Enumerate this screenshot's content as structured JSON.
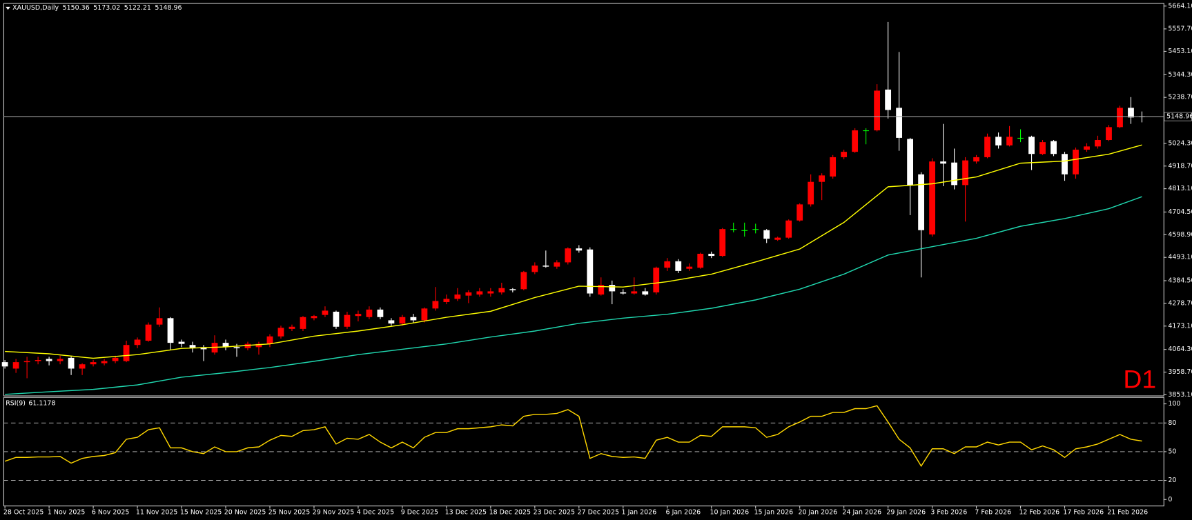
{
  "chart_data": [
    {
      "type": "candlestick",
      "title": "XAUUSD,Daily",
      "timeframe_label": "D1",
      "up_color": "#ff0000",
      "down_color": "#ffffff",
      "doji_color": "#00ff00",
      "price_line_color": "#a0a0a0",
      "candles": {
        "open": [
          4005,
          3975,
          4005,
          4010,
          4020,
          4010,
          4025,
          3975,
          3995,
          4000,
          4010,
          4010,
          4085,
          4105,
          4180,
          4210,
          4100,
          4085,
          4075,
          4050,
          4095,
          4075,
          4070,
          4075,
          4090,
          4125,
          4160,
          4160,
          4210,
          4225,
          4240,
          4170,
          4220,
          4215,
          4250,
          4200,
          4185,
          4215,
          4200,
          4255,
          4285,
          4300,
          4315,
          4320,
          4325,
          4330,
          4345,
          4345,
          4425,
          4455,
          4450,
          4470,
          4535,
          4530,
          4320,
          4365,
          4330,
          4325,
          4335,
          4330,
          4445,
          4475,
          4440,
          4445,
          4510,
          4500,
          4625,
          4620,
          4625,
          4620,
          4575,
          4585,
          4665,
          4740,
          4845,
          4870,
          4960,
          4985,
          5085,
          5085,
          5275,
          5190,
          5045,
          4880,
          4600,
          4940,
          4935,
          4830,
          4940,
          4960,
          5055,
          5015,
          5050,
          5055,
          4975,
          5035,
          4975,
          4880,
          4995,
          5010,
          5040,
          5100,
          5190,
          5150.36
        ],
        "high": [
          4015,
          4020,
          4030,
          4030,
          4030,
          4035,
          4035,
          4000,
          4015,
          4020,
          4035,
          4105,
          4120,
          4190,
          4260,
          4215,
          4110,
          4100,
          4085,
          4130,
          4110,
          4090,
          4100,
          4100,
          4135,
          4175,
          4180,
          4220,
          4225,
          4265,
          4245,
          4240,
          4245,
          4265,
          4260,
          4210,
          4225,
          4230,
          4260,
          4355,
          4320,
          4350,
          4340,
          4350,
          4350,
          4375,
          4350,
          4430,
          4470,
          4525,
          4480,
          4540,
          4550,
          4540,
          4400,
          4385,
          4345,
          4400,
          4350,
          4450,
          4490,
          4485,
          4465,
          4515,
          4520,
          4630,
          4655,
          4655,
          4650,
          4625,
          4590,
          4670,
          4745,
          4880,
          4885,
          4970,
          4995,
          5095,
          5095,
          5300,
          5590,
          5450,
          5050,
          4890,
          4955,
          5115,
          5000,
          4960,
          4970,
          5070,
          5075,
          5105,
          5090,
          5060,
          5040,
          5040,
          4985,
          5005,
          5025,
          5060,
          5110,
          5200,
          5240,
          5173.02
        ],
        "low": [
          3975,
          3955,
          3930,
          3995,
          3990,
          3995,
          3945,
          3945,
          3985,
          3990,
          4000,
          4005,
          4070,
          4100,
          4170,
          4060,
          4075,
          4050,
          4010,
          4040,
          4060,
          4030,
          4060,
          4040,
          4075,
          4115,
          4150,
          4150,
          4200,
          4215,
          4160,
          4160,
          4195,
          4205,
          4205,
          4175,
          4175,
          4190,
          4190,
          4245,
          4275,
          4290,
          4280,
          4310,
          4310,
          4320,
          4330,
          4340,
          4415,
          4445,
          4440,
          4460,
          4515,
          4310,
          4315,
          4275,
          4320,
          4320,
          4315,
          4320,
          4430,
          4420,
          4430,
          4440,
          4490,
          4495,
          4610,
          4590,
          4605,
          4560,
          4570,
          4580,
          4660,
          4730,
          4760,
          4860,
          4950,
          4980,
          5020,
          5080,
          5140,
          4990,
          4690,
          4400,
          4590,
          4825,
          4810,
          4660,
          4930,
          4955,
          5000,
          5010,
          5030,
          4900,
          4970,
          4965,
          4850,
          4860,
          4985,
          5000,
          5035,
          5095,
          5115,
          5122.21
        ],
        "close": [
          3985,
          4005,
          4010,
          4015,
          4010,
          4020,
          3975,
          3995,
          4005,
          4010,
          4025,
          4085,
          4110,
          4180,
          4210,
          4095,
          4090,
          4070,
          4065,
          4095,
          4075,
          4070,
          4090,
          4090,
          4125,
          4165,
          4170,
          4215,
          4220,
          4245,
          4170,
          4225,
          4230,
          4250,
          4215,
          4185,
          4215,
          4200,
          4255,
          4290,
          4300,
          4320,
          4330,
          4335,
          4335,
          4350,
          4340,
          4425,
          4455,
          4450,
          4470,
          4535,
          4525,
          4325,
          4365,
          4335,
          4325,
          4335,
          4320,
          4445,
          4475,
          4430,
          4450,
          4510,
          4500,
          4625,
          4625,
          4620,
          4625,
          4580,
          4585,
          4665,
          4740,
          4845,
          4875,
          4960,
          4985,
          5085,
          5085,
          5270,
          5180,
          5050,
          4830,
          4620,
          4940,
          4930,
          4830,
          4945,
          4960,
          5055,
          5015,
          5055,
          5050,
          4975,
          5030,
          4975,
          4880,
          4995,
          5010,
          5040,
          5100,
          5190,
          5145,
          5148.96
        ]
      },
      "series": [
        {
          "color": "#ffff00",
          "x": [
            0,
            4,
            8,
            12,
            16,
            20,
            24,
            28,
            32,
            36,
            40,
            44,
            48,
            52,
            56,
            60,
            64,
            68,
            72,
            76,
            80,
            84,
            88,
            92,
            96,
            100,
            103
          ],
          "values": [
            4055,
            4044,
            4023,
            4040,
            4069,
            4076,
            4090,
            4126,
            4150,
            4179,
            4214,
            4242,
            4306,
            4359,
            4355,
            4380,
            4415,
            4472,
            4532,
            4656,
            4822,
            4836,
            4868,
            4932,
            4942,
            4974,
            5017
          ]
        },
        {
          "color": "#20d8b0",
          "x": [
            0,
            4,
            8,
            12,
            16,
            20,
            24,
            28,
            32,
            36,
            40,
            44,
            48,
            52,
            56,
            60,
            64,
            68,
            72,
            76,
            80,
            84,
            88,
            92,
            96,
            100,
            103
          ],
          "values": [
            3855,
            3867,
            3878,
            3899,
            3935,
            3956,
            3980,
            4009,
            4040,
            4065,
            4090,
            4122,
            4150,
            4186,
            4210,
            4228,
            4256,
            4295,
            4345,
            4415,
            4504,
            4543,
            4582,
            4638,
            4674,
            4720,
            4776
          ]
        }
      ],
      "ylim": [
        3849.6,
        5678.2
      ],
      "yticks": [
        {
          "value": 5664.1,
          "label": "5664.10"
        },
        {
          "value": 5557.7,
          "label": "5557.70"
        },
        {
          "value": 5453.1,
          "label": "5453.10"
        },
        {
          "value": 5344.3,
          "label": "5344.30"
        },
        {
          "value": 5238.7,
          "label": "5238.70"
        },
        {
          "value": 5024.3,
          "label": "5024.30"
        },
        {
          "value": 4918.7,
          "label": "4918.70"
        },
        {
          "value": 4813.1,
          "label": "4813.10"
        },
        {
          "value": 4704.5,
          "label": "4704.50"
        },
        {
          "value": 4598.9,
          "label": "4598.90"
        },
        {
          "value": 4493.1,
          "label": "4493.10"
        },
        {
          "value": 4384.5,
          "label": "4384.50"
        },
        {
          "value": 4278.7,
          "label": "4278.70"
        },
        {
          "value": 4173.1,
          "label": "4173.10"
        },
        {
          "value": 4064.3,
          "label": "4064.30"
        },
        {
          "value": 3958.7,
          "label": "3958.70"
        },
        {
          "value": 3853.1,
          "label": "3853.10"
        }
      ]
    },
    {
      "type": "line",
      "title": "RSI(9)",
      "color": "#ffd700",
      "values": [
        40,
        44,
        44,
        44.5,
        44.5,
        45,
        38,
        43,
        45,
        46,
        49,
        63,
        65,
        73,
        75,
        54,
        54,
        50,
        48,
        55,
        50,
        50,
        54,
        55,
        62,
        67,
        66,
        72,
        73,
        76,
        58,
        64,
        63,
        68,
        60,
        54,
        60,
        54,
        65,
        70,
        70,
        74,
        74,
        75,
        76,
        78,
        77,
        87,
        89,
        89,
        90,
        94,
        87,
        43,
        48,
        45,
        44,
        44.5,
        43,
        62,
        65,
        60,
        60,
        67,
        66,
        76,
        76,
        76,
        75,
        65,
        68,
        76,
        81,
        87,
        87,
        91,
        91,
        95,
        95,
        98,
        81,
        63,
        54,
        35,
        53,
        53,
        48,
        55,
        55,
        60,
        57,
        60,
        60,
        52,
        56,
        52,
        44,
        53,
        55,
        58,
        63,
        68,
        63,
        61.1178
      ],
      "ylim": [
        -6.35,
        106.35
      ],
      "yticks": [
        100,
        80,
        50,
        20,
        0
      ],
      "levels": [
        80,
        50,
        20
      ],
      "xticks": [
        {
          "value": 0,
          "label": "28 Oct 2025"
        },
        {
          "value": 4,
          "label": "1 Nov 2025"
        },
        {
          "value": 8,
          "label": "6 Nov 2025"
        },
        {
          "value": 12,
          "label": "11 Nov 2025"
        },
        {
          "value": 16,
          "label": "15 Nov 2025"
        },
        {
          "value": 20,
          "label": "20 Nov 2025"
        },
        {
          "value": 24,
          "label": "25 Nov 2025"
        },
        {
          "value": 28,
          "label": "29 Nov 2025"
        },
        {
          "value": 32,
          "label": "4 Dec 2025"
        },
        {
          "value": 36,
          "label": "9 Dec 2025"
        },
        {
          "value": 40,
          "label": "13 Dec 2025"
        },
        {
          "value": 44,
          "label": "18 Dec 2025"
        },
        {
          "value": 48,
          "label": "23 Dec 2025"
        },
        {
          "value": 52,
          "label": "27 Dec 2025"
        },
        {
          "value": 56,
          "label": "1 Jan 2026"
        },
        {
          "value": 60,
          "label": "6 Jan 2026"
        },
        {
          "value": 64,
          "label": "10 Jan 2026"
        },
        {
          "value": 68,
          "label": "15 Jan 2026"
        },
        {
          "value": 72,
          "label": "20 Jan 2026"
        },
        {
          "value": 76,
          "label": "24 Jan 2026"
        },
        {
          "value": 80,
          "label": "29 Jan 2026"
        },
        {
          "value": 84,
          "label": "3 Feb 2026"
        },
        {
          "value": 88,
          "label": "7 Feb 2026"
        },
        {
          "value": 92,
          "label": "12 Feb 2026"
        },
        {
          "value": 96,
          "label": "17 Feb 2026"
        },
        {
          "value": 100,
          "label": "21 Feb 2026"
        }
      ]
    }
  ]
}
